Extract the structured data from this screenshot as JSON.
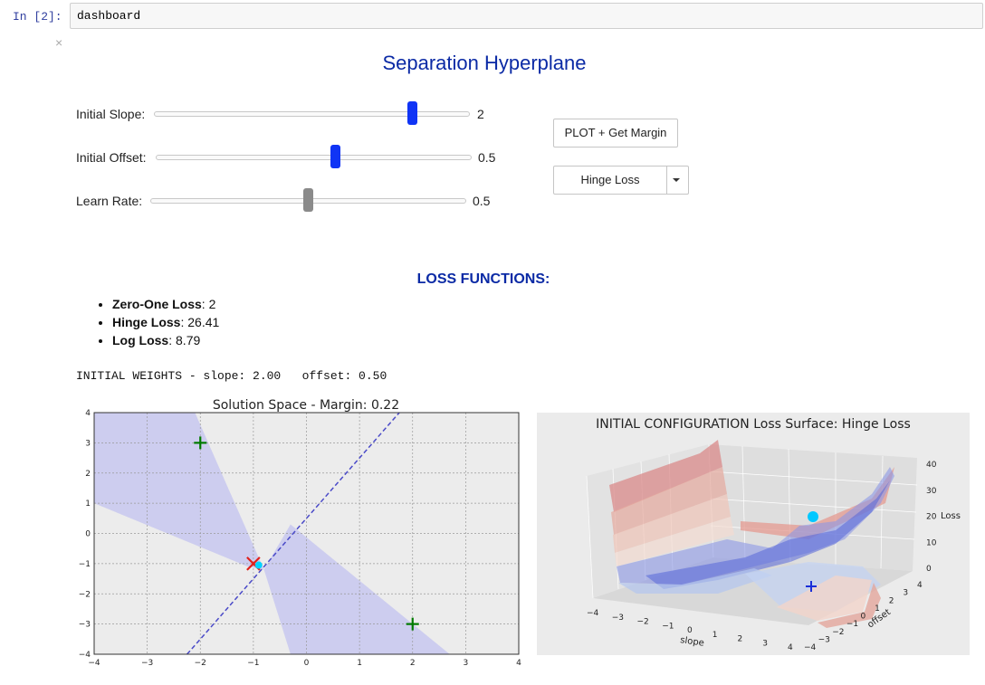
{
  "cell": {
    "prompt": "In [2]:",
    "code": "dashboard",
    "close_glyph": "×"
  },
  "title": "Separation Hyperplane",
  "sliders": [
    {
      "label": "Initial Slope:",
      "value": "2",
      "fill_fraction": 0.82,
      "color": "#1034f5"
    },
    {
      "label": "Initial Offset:",
      "value": "0.5",
      "fill_fraction": 0.57,
      "color": "#1034f5"
    },
    {
      "label": "Learn Rate:",
      "value": "0.5",
      "fill_fraction": 0.5,
      "color": "#8a8a8a"
    }
  ],
  "buttons": {
    "plot_label": "PLOT + Get Margin"
  },
  "dropdown": {
    "selected": "Hinge Loss"
  },
  "loss_section": {
    "title": "LOSS FUNCTIONS:",
    "items": [
      {
        "name": "Zero-One Loss",
        "value": ": 2"
      },
      {
        "name": "Hinge Loss",
        "value": ": 26.41"
      },
      {
        "name": "Log Loss",
        "value": ": 8.79"
      }
    ]
  },
  "weights_text": "INITIAL WEIGHTS - slope: 2.00   offset: 0.50",
  "chart_data": [
    {
      "type": "scatter",
      "title": "Solution Space - Margin: 0.22",
      "xlim": [
        -4,
        4
      ],
      "ylim": [
        -4,
        4
      ],
      "xticks": [
        "−4",
        "−3",
        "−2",
        "−1",
        "0",
        "1",
        "2",
        "3",
        "4"
      ],
      "yticks": [
        "4",
        "3",
        "2",
        "1",
        "0",
        "−1",
        "−2",
        "−3",
        "−4"
      ],
      "grid": true,
      "points": [
        {
          "x": -2,
          "y": 3,
          "marker": "plus",
          "color": "#007a00"
        },
        {
          "x": 2,
          "y": -3,
          "marker": "plus",
          "color": "#007a00"
        },
        {
          "x": -1,
          "y": -1,
          "marker": "x",
          "color": "#e0201b"
        },
        {
          "x": -0.9,
          "y": -1.05,
          "marker": "dot",
          "color": "#00d3ff"
        }
      ],
      "decision_line": {
        "slope": 2,
        "offset": 0.5,
        "style": "dashed",
        "color": "#4a4ac8"
      },
      "shaded_region_color": "#c8c8f0"
    },
    {
      "type": "surface3d",
      "title": "INITIAL CONFIGURATION Loss Surface: Hinge Loss",
      "xlabel": "slope",
      "ylabel": "offset",
      "zlabel": "Loss",
      "xticks": [
        "−4",
        "−3",
        "−2",
        "−1",
        "0",
        "1",
        "2",
        "3",
        "4"
      ],
      "yticks": [
        "−4",
        "−3",
        "−2",
        "−1",
        "0",
        "1",
        "2",
        "3",
        "4"
      ],
      "zticks": [
        "0",
        "10",
        "20",
        "30",
        "40"
      ]
    }
  ]
}
